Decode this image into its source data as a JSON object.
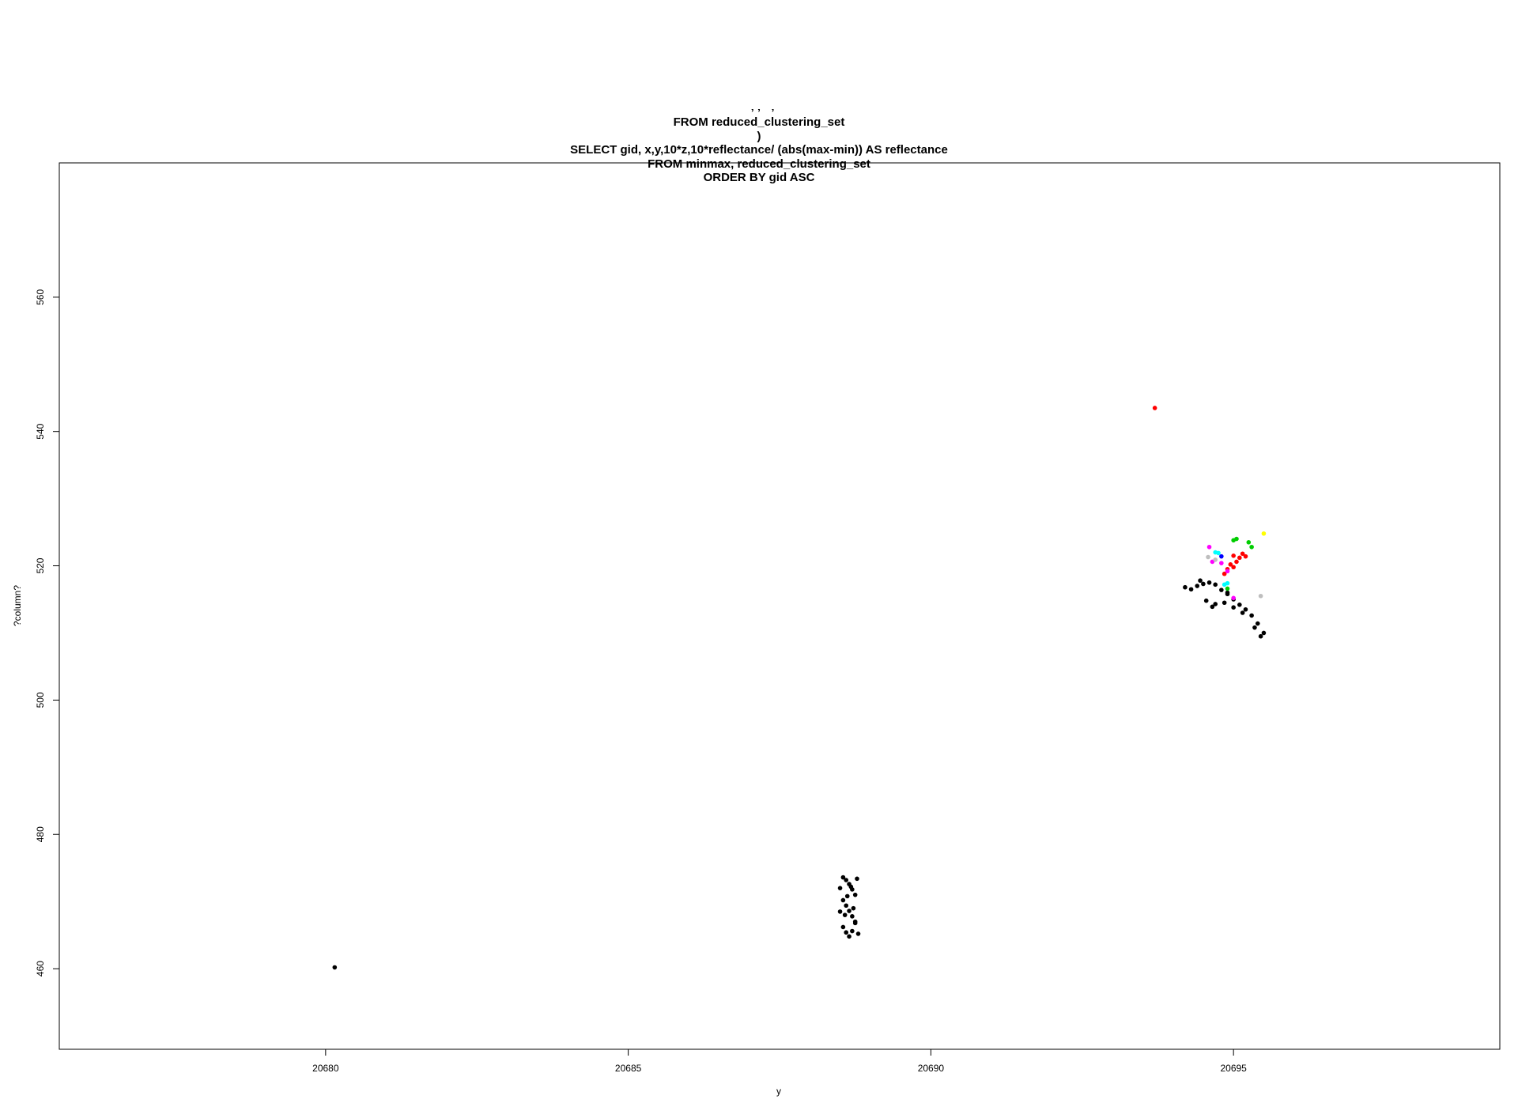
{
  "chart_data": {
    "type": "scatter",
    "title_lines": [
      "` , , ` ,",
      "FROM reduced_clustering_set",
      ")",
      "SELECT gid, x,y,10*z,10*reflectance/ (abs(max-min)) AS reflectance",
      "FROM minmax, reduced_clustering_set",
      "ORDER BY gid ASC"
    ],
    "xlabel": "y",
    "ylabel": "?column?",
    "xlim": [
      20675.6,
      20699.4
    ],
    "ylim": [
      448,
      580
    ],
    "x_ticks": [
      20680,
      20685,
      20690,
      20695
    ],
    "y_ticks": [
      460,
      480,
      500,
      520,
      540,
      560
    ],
    "grid": false,
    "series": [
      {
        "color": "#000000",
        "points": [
          [
            20680.15,
            460.2
          ],
          [
            20688.55,
            473.6
          ],
          [
            20688.6,
            473.2
          ],
          [
            20688.65,
            472.6
          ],
          [
            20688.7,
            471.8
          ],
          [
            20688.75,
            471.0
          ],
          [
            20688.55,
            470.2
          ],
          [
            20688.6,
            469.4
          ],
          [
            20688.65,
            468.6
          ],
          [
            20688.7,
            467.8
          ],
          [
            20688.75,
            467.0
          ],
          [
            20688.55,
            466.2
          ],
          [
            20688.6,
            465.4
          ],
          [
            20688.65,
            464.8
          ],
          [
            20688.7,
            465.6
          ],
          [
            20688.75,
            466.8
          ],
          [
            20688.58,
            468.0
          ],
          [
            20688.62,
            470.8
          ],
          [
            20688.68,
            472.2
          ],
          [
            20688.72,
            469.0
          ],
          [
            20688.5,
            472.0
          ],
          [
            20688.5,
            468.5
          ],
          [
            20688.78,
            473.4
          ],
          [
            20688.8,
            465.2
          ],
          [
            20694.3,
            516.5
          ],
          [
            20694.4,
            517.0
          ],
          [
            20694.5,
            517.3
          ],
          [
            20694.6,
            517.5
          ],
          [
            20694.7,
            517.2
          ],
          [
            20694.8,
            516.4
          ],
          [
            20694.9,
            515.8
          ],
          [
            20695.0,
            515.0
          ],
          [
            20695.1,
            514.2
          ],
          [
            20695.2,
            513.5
          ],
          [
            20695.3,
            512.6
          ],
          [
            20695.4,
            511.4
          ],
          [
            20695.5,
            510.0
          ],
          [
            20695.45,
            509.5
          ],
          [
            20695.35,
            510.8
          ],
          [
            20694.55,
            514.8
          ],
          [
            20694.7,
            514.3
          ],
          [
            20694.85,
            514.5
          ],
          [
            20695.0,
            513.8
          ],
          [
            20694.65,
            513.9
          ],
          [
            20694.2,
            516.8
          ],
          [
            20694.45,
            517.8
          ],
          [
            20694.9,
            516.0
          ],
          [
            20695.15,
            513.0
          ]
        ]
      },
      {
        "color": "#ff0000",
        "points": [
          [
            20693.7,
            543.5
          ],
          [
            20695.0,
            521.5
          ],
          [
            20695.1,
            521.2
          ],
          [
            20695.2,
            521.4
          ],
          [
            20695.15,
            521.8
          ],
          [
            20695.05,
            520.6
          ],
          [
            20694.95,
            520.2
          ],
          [
            20694.9,
            519.5
          ],
          [
            20695.0,
            519.8
          ],
          [
            20694.85,
            518.8
          ]
        ]
      },
      {
        "color": "#00cd00",
        "points": [
          [
            20695.0,
            523.8
          ],
          [
            20695.05,
            524.0
          ],
          [
            20695.25,
            523.5
          ],
          [
            20695.3,
            522.8
          ],
          [
            20694.9,
            516.6
          ]
        ]
      },
      {
        "color": "#0000ff",
        "points": [
          [
            20694.8,
            521.4
          ]
        ]
      },
      {
        "color": "#00ffff",
        "points": [
          [
            20694.7,
            522.0
          ],
          [
            20694.75,
            521.9
          ],
          [
            20694.9,
            517.4
          ],
          [
            20694.85,
            517.2
          ]
        ]
      },
      {
        "color": "#ff00ff",
        "points": [
          [
            20694.6,
            522.8
          ],
          [
            20694.65,
            520.6
          ],
          [
            20694.8,
            520.4
          ],
          [
            20694.9,
            519.2
          ],
          [
            20695.0,
            515.2
          ]
        ]
      },
      {
        "color": "#ffff00",
        "points": [
          [
            20695.5,
            524.8
          ]
        ]
      },
      {
        "color": "#bebebe",
        "points": [
          [
            20695.45,
            515.5
          ],
          [
            20694.58,
            521.3
          ],
          [
            20694.7,
            520.9
          ]
        ]
      }
    ]
  }
}
